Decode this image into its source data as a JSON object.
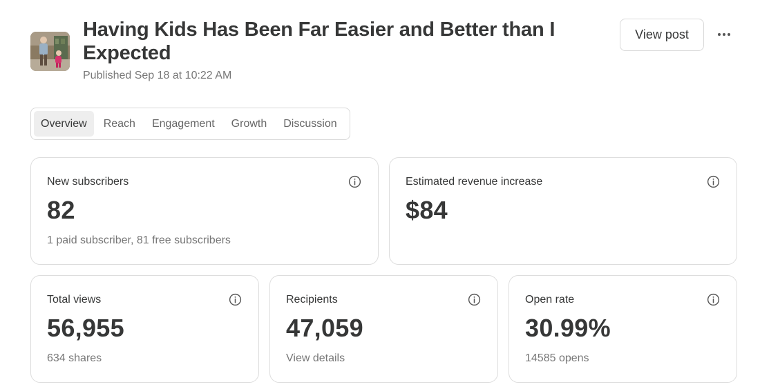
{
  "post": {
    "title": "Having Kids Has Been Far Easier and Better than I Expected",
    "published": "Published Sep 18 at 10:22 AM",
    "thumbnail_icon": "post-thumbnail-photo"
  },
  "actions": {
    "view_post_label": "View post",
    "more_icon": "more-horizontal-icon"
  },
  "tabs": [
    {
      "label": "Overview",
      "active": true
    },
    {
      "label": "Reach",
      "active": false
    },
    {
      "label": "Engagement",
      "active": false
    },
    {
      "label": "Growth",
      "active": false
    },
    {
      "label": "Discussion",
      "active": false
    }
  ],
  "stats": {
    "new_subscribers": {
      "label": "New subscribers",
      "value": "82",
      "sub": "1 paid subscriber, 81 free subscribers"
    },
    "revenue": {
      "label": "Estimated revenue increase",
      "value": "$84",
      "sub": ""
    },
    "total_views": {
      "label": "Total views",
      "value": "56,955",
      "sub": "634 shares"
    },
    "recipients": {
      "label": "Recipients",
      "value": "47,059",
      "sub": "View details"
    },
    "open_rate": {
      "label": "Open rate",
      "value": "30.99%",
      "sub": "14585 opens"
    }
  },
  "colors": {
    "text": "#363737",
    "muted": "#777777",
    "border": "#dddddd",
    "active_tab": "#eeeeee"
  }
}
